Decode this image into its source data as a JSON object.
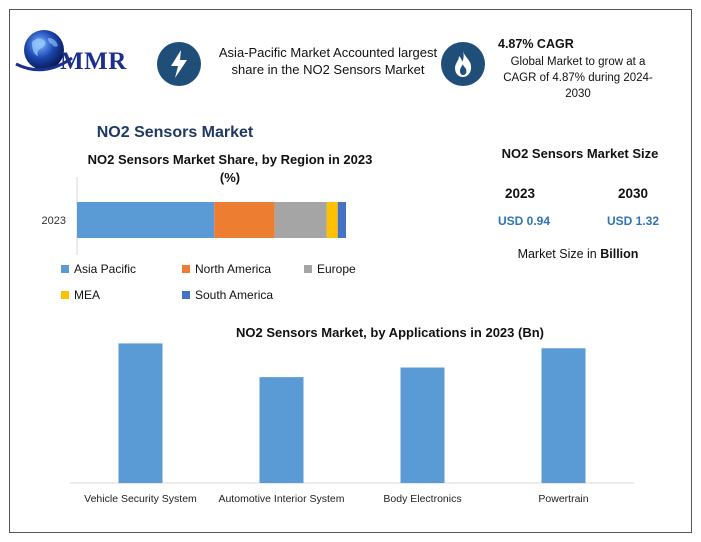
{
  "logo": {
    "text": "MMR"
  },
  "highlights": [
    {
      "icon": "lightning-bolt-icon",
      "text": "Asia-Pacific Market Accounted largest share in the NO2 Sensors Market"
    },
    {
      "icon": "flame-icon",
      "title": "4.87% CAGR",
      "text": "Global Market to grow at a CAGR of 4.87% during 2024-2030"
    }
  ],
  "main_title": "NO2 Sensors Market",
  "market_size": {
    "title": "NO2 Sensors Market Size",
    "years": [
      {
        "year": "2023",
        "value": "USD 0.94"
      },
      {
        "year": "2030",
        "value": "USD 1.32"
      }
    ],
    "note_prefix": "Market Size in ",
    "note_bold": "Billion"
  },
  "colors": {
    "Asia Pacific": "#5b9bd5",
    "North America": "#ed7d31",
    "Europe": "#a5a5a5",
    "MEA": "#ffc000",
    "South America": "#4472c4",
    "bars": "#5b9bd5",
    "title_blue": "#1f3864",
    "value_blue": "#2e75b6",
    "icon_bg": "#1f4e79"
  },
  "chart_data": [
    {
      "type": "bar",
      "orientation": "horizontal-stacked",
      "title": "NO2 Sensors Market Share, by Region in 2023 (%)",
      "categories": [
        "2023"
      ],
      "series": [
        {
          "name": "Asia Pacific",
          "values": [
            50
          ]
        },
        {
          "name": "North America",
          "values": [
            22
          ]
        },
        {
          "name": "Europe",
          "values": [
            19
          ]
        },
        {
          "name": "MEA",
          "values": [
            4
          ]
        },
        {
          "name": "South America",
          "values": [
            3
          ]
        }
      ],
      "xlim": [
        0,
        100
      ],
      "grid": false,
      "legend": "bottom"
    },
    {
      "type": "bar",
      "title": "NO2 Sensors Market, by Applications in 2023 (Bn)",
      "categories": [
        "Vehicle Security System",
        "Automotive Interior System",
        "Body Electronics",
        "Powertrain"
      ],
      "values": [
        0.29,
        0.22,
        0.24,
        0.28
      ],
      "ylim": [
        0,
        0.32
      ],
      "grid": false,
      "legend": "none"
    }
  ]
}
